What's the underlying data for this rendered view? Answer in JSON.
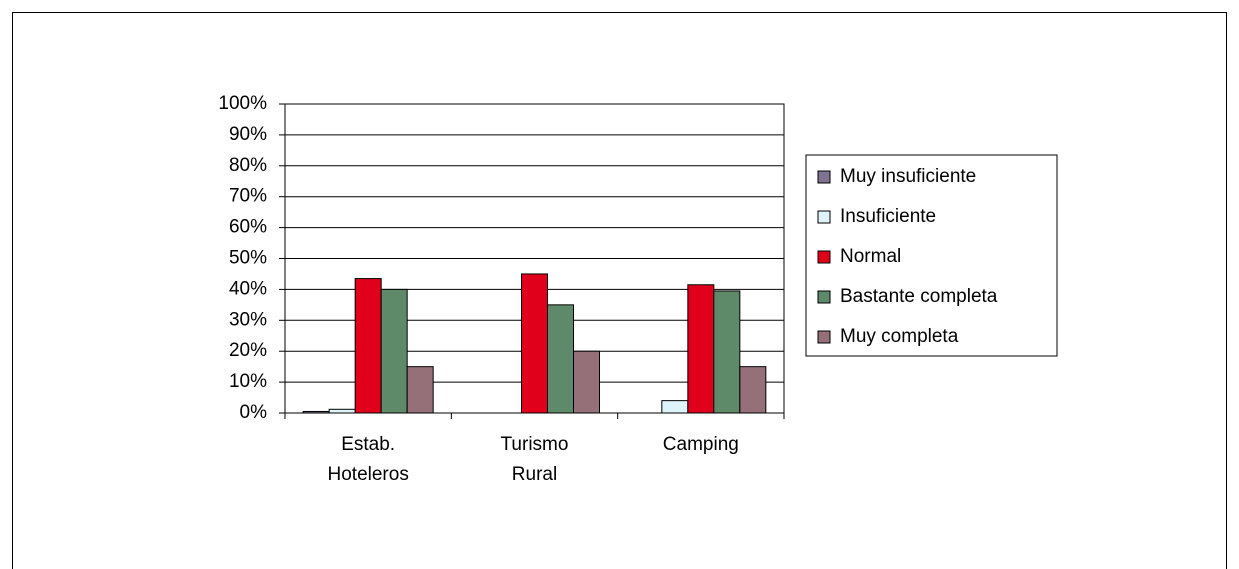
{
  "chart_data": {
    "type": "bar",
    "categories": [
      "Estab. Hoteleros",
      "Turismo Rural",
      "Camping"
    ],
    "series": [
      {
        "name": "Muy insuficiente",
        "color": "#7f7391",
        "values": [
          0.5,
          0,
          0
        ]
      },
      {
        "name": "Insuficiente",
        "color": "#dff3fb",
        "values": [
          1.2,
          0,
          4
        ]
      },
      {
        "name": "Normal",
        "color": "#e0001b",
        "values": [
          43.5,
          45,
          41.5
        ]
      },
      {
        "name": "Bastante completa",
        "color": "#5f8a6a",
        "values": [
          40,
          35,
          39.5
        ]
      },
      {
        "name": "Muy completa",
        "color": "#957078",
        "values": [
          15,
          20,
          15
        ]
      }
    ],
    "ylim": [
      0,
      100
    ],
    "yticks": [
      {
        "value": 0,
        "label": "0%"
      },
      {
        "value": 10,
        "label": "10%"
      },
      {
        "value": 20,
        "label": "20%"
      },
      {
        "value": 30,
        "label": "30%"
      },
      {
        "value": 40,
        "label": "40%"
      },
      {
        "value": 50,
        "label": "50%"
      },
      {
        "value": 60,
        "label": "60%"
      },
      {
        "value": 70,
        "label": "70%"
      },
      {
        "value": 80,
        "label": "80%"
      },
      {
        "value": 90,
        "label": "90%"
      },
      {
        "value": 100,
        "label": "100%"
      }
    ],
    "grid": true,
    "legend": "right"
  }
}
